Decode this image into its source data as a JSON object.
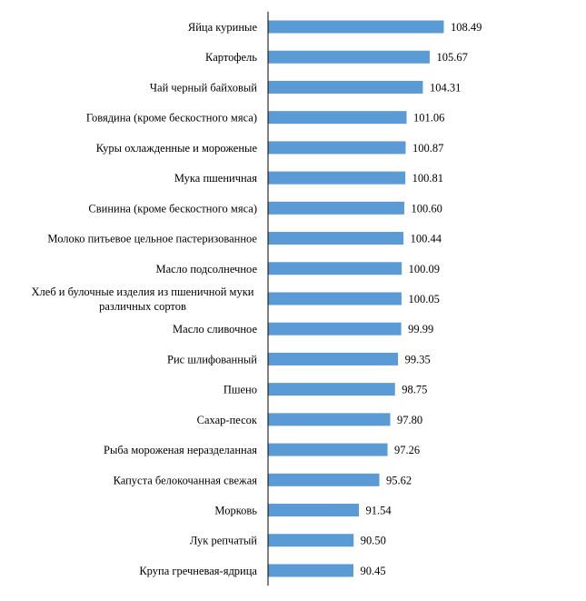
{
  "chart_data": {
    "type": "bar",
    "orientation": "horizontal",
    "categories": [
      "Яйца куриные",
      "Картофель",
      "Чай черный байховый",
      "Говядина (кроме бескостного мяса)",
      "Куры охлажденные и мороженые",
      "Мука пшеничная",
      "Свинина (кроме бескостного мяса)",
      "Молоко питьевое цельное пастеризованное",
      "Масло подсолнечное",
      "Хлеб и булочные изделия из пшеничной муки различных сортов",
      "Масло сливочное",
      "Рис шлифованный",
      "Пшено",
      "Сахар-песок",
      "Рыба мороженая неразделанная",
      "Капуста белокочанная свежая",
      "Морковь",
      "Лук репчатый",
      "Крупа гречневая-ядрица"
    ],
    "category_lines": [
      [
        "Яйца куриные"
      ],
      [
        "Картофель"
      ],
      [
        "Чай черный байховый"
      ],
      [
        "Говядина (кроме бескостного мяса)"
      ],
      [
        "Куры охлажденные и мороженые"
      ],
      [
        "Мука пшеничная"
      ],
      [
        "Свинина (кроме бескостного мяса)"
      ],
      [
        "Молоко питьевое цельное пастеризованное"
      ],
      [
        "Масло подсолнечное"
      ],
      [
        "Хлеб и булочные изделия из пшеничной муки",
        "различных сортов"
      ],
      [
        "Масло сливочное"
      ],
      [
        "Рис шлифованный"
      ],
      [
        "Пшено"
      ],
      [
        "Сахар-песок"
      ],
      [
        "Рыба мороженая неразделанная"
      ],
      [
        "Капуста белокочанная свежая"
      ],
      [
        "Морковь"
      ],
      [
        "Лук репчатый"
      ],
      [
        "Крупа гречневая-ядрица"
      ]
    ],
    "values": [
      108.49,
      105.67,
      104.31,
      101.06,
      100.87,
      100.81,
      100.6,
      100.44,
      100.09,
      100.05,
      99.99,
      99.35,
      98.75,
      97.8,
      97.26,
      95.62,
      91.54,
      90.5,
      90.45
    ],
    "value_labels": [
      "108.49",
      "105.67",
      "104.31",
      "101.06",
      "100.87",
      "100.81",
      "100.60",
      "100.44",
      "100.09",
      "100.05",
      "99.99",
      "99.35",
      "98.75",
      "97.80",
      "97.26",
      "95.62",
      "91.54",
      "90.50",
      "90.45"
    ],
    "title": "",
    "xlabel": "",
    "ylabel": "",
    "xlim": [
      73.5,
      108.49
    ],
    "grid": false,
    "legend": "none",
    "bar_color": "#5B9BD5"
  }
}
